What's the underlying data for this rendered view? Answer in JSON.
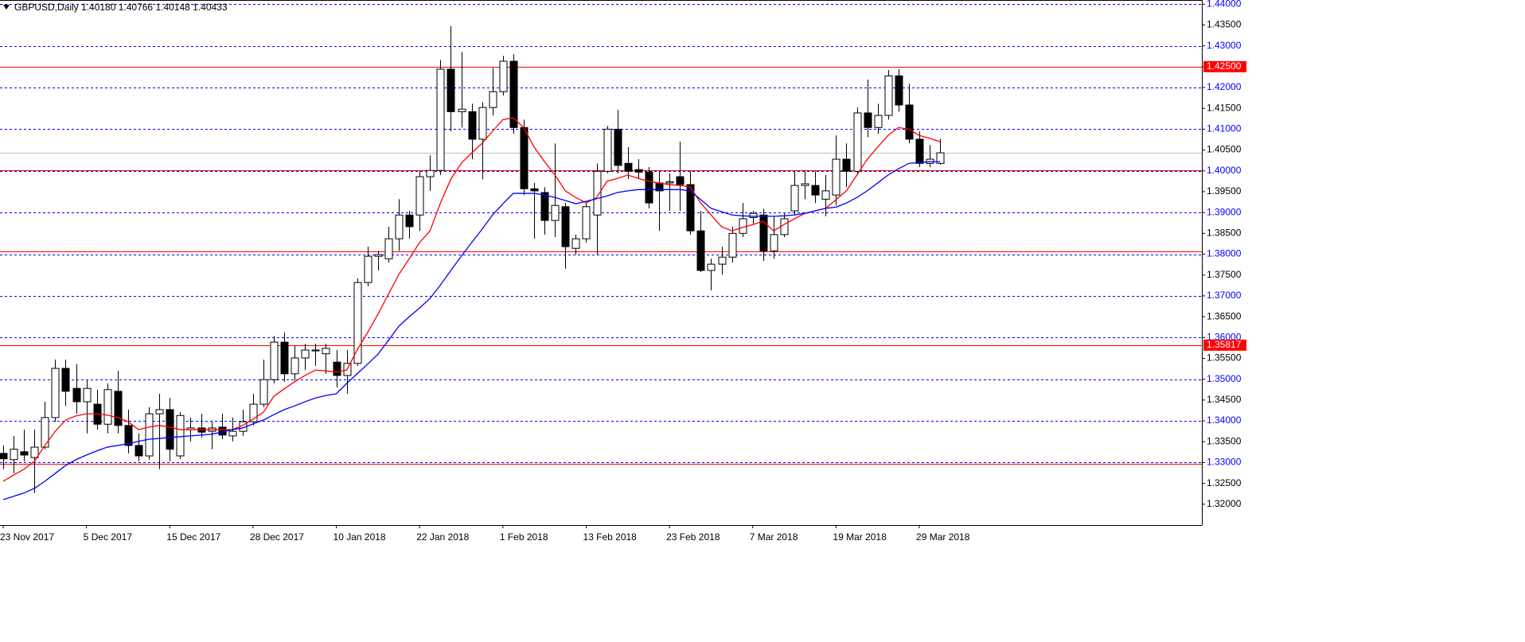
{
  "chart_data": {
    "type": "candlestick",
    "header": "GBPUSD,Daily  1.40180 1.40766 1.40148 1.40433",
    "categories": [
      "23 Nov 2017",
      null,
      null,
      null,
      null,
      null,
      null,
      null,
      "5 Dec 2017",
      null,
      null,
      null,
      null,
      null,
      null,
      null,
      "15 Dec 2017",
      null,
      null,
      null,
      null,
      null,
      null,
      null,
      "28 Dec 2017",
      null,
      null,
      null,
      null,
      null,
      null,
      null,
      "10 Jan 2018",
      null,
      null,
      null,
      null,
      null,
      null,
      null,
      "22 Jan 2018",
      null,
      null,
      null,
      null,
      null,
      null,
      null,
      "1 Feb 2018",
      null,
      null,
      null,
      null,
      null,
      null,
      null,
      "13 Feb 2018",
      null,
      null,
      null,
      null,
      null,
      null,
      null,
      "23 Feb 2018",
      null,
      null,
      null,
      null,
      null,
      null,
      null,
      "7 Mar 2018",
      null,
      null,
      null,
      null,
      null,
      null,
      null,
      "19 Mar 2018",
      null,
      null,
      null,
      null,
      null,
      null,
      null,
      "29 Mar 2018",
      null,
      null
    ],
    "open": [
      1.3322,
      1.3307,
      1.3326,
      1.3312,
      1.3337,
      1.3408,
      1.3526,
      1.3478,
      1.3446,
      1.344,
      1.3392,
      1.3471,
      1.3389,
      1.3341,
      1.3316,
      1.3417,
      1.3427,
      1.3316,
      1.3379,
      1.3383,
      1.3375,
      1.3385,
      1.3364,
      1.3375,
      1.3398,
      1.344,
      1.3499,
      1.3589,
      1.3513,
      1.3551,
      1.3568,
      1.3561,
      1.3541,
      1.3509,
      1.3538,
      1.3732,
      1.3795,
      1.3789,
      1.3837,
      1.3894,
      1.3894,
      1.3986,
      1.4001,
      1.4244,
      1.4142,
      1.4142,
      1.4076,
      1.4152,
      1.419,
      1.4263,
      1.4104,
      1.3957,
      1.3948,
      1.3881,
      1.3914,
      1.3814,
      1.3837,
      1.3894,
      1.3999,
      1.41,
      1.4018,
      1.4003,
      1.3997,
      1.3971,
      1.3971,
      1.3986,
      1.3967,
      1.3856,
      1.3761,
      1.3776,
      1.3793,
      1.385,
      1.3888,
      1.3894,
      1.3808,
      1.3847,
      1.3904,
      1.3965,
      1.3965,
      1.3932,
      1.3942,
      1.4028,
      1.3999,
      1.4139,
      1.4104,
      1.4133,
      1.4228,
      1.4158,
      1.4076,
      1.4018,
      1.4018
    ],
    "high": [
      1.3341,
      1.3364,
      1.3379,
      1.3379,
      1.3446,
      1.3547,
      1.3547,
      1.3536,
      1.3497,
      1.3475,
      1.349,
      1.352,
      1.3427,
      1.337,
      1.3433,
      1.3465,
      1.3455,
      1.3421,
      1.3408,
      1.3417,
      1.3398,
      1.3417,
      1.3408,
      1.3427,
      1.3465,
      1.3547,
      1.3604,
      1.3612,
      1.358,
      1.3585,
      1.3585,
      1.3585,
      1.357,
      1.357,
      1.3742,
      1.3818,
      1.3808,
      1.3866,
      1.3932,
      1.3904,
      1.3999,
      1.4037,
      1.4266,
      1.4347,
      1.4285,
      1.4161,
      1.4165,
      1.4247,
      1.4276,
      1.428,
      1.4123,
      1.3971,
      1.3961,
      1.4066,
      1.3923,
      1.3847,
      1.3923,
      1.4018,
      1.4108,
      1.4146,
      1.4057,
      1.4028,
      1.4009,
      1.3999,
      1.3994,
      1.407,
      1.3999,
      1.3904,
      1.3789,
      1.3818,
      1.3866,
      1.3923,
      1.3904,
      1.3909,
      1.389,
      1.3898,
      1.3999,
      1.3999,
      1.3999,
      1.399,
      1.4085,
      1.4066,
      1.4152,
      1.4219,
      1.4161,
      1.4242,
      1.4244,
      1.4209,
      1.4095,
      1.4062,
      1.40766
    ],
    "low": [
      1.3284,
      1.3274,
      1.3303,
      1.3227,
      1.3332,
      1.3398,
      1.3436,
      1.3417,
      1.337,
      1.3379,
      1.337,
      1.337,
      1.3322,
      1.3303,
      1.3307,
      1.3284,
      1.3303,
      1.3309,
      1.3351,
      1.336,
      1.3332,
      1.3356,
      1.3351,
      1.3364,
      1.3389,
      1.3433,
      1.349,
      1.3494,
      1.3497,
      1.3522,
      1.3532,
      1.3513,
      1.348,
      1.3465,
      1.3532,
      1.3723,
      1.3761,
      1.378,
      1.3808,
      1.3837,
      1.3856,
      1.3952,
      1.399,
      1.4095,
      1.4104,
      1.4028,
      1.398,
      1.4133,
      1.4181,
      1.4089,
      1.3942,
      1.3837,
      1.3847,
      1.3841,
      1.3765,
      1.3799,
      1.3828,
      1.3799,
      1.3994,
      1.3994,
      1.398,
      1.398,
      1.391,
      1.3856,
      1.3904,
      1.3904,
      1.3847,
      1.3757,
      1.3713,
      1.3751,
      1.378,
      1.3841,
      1.3871,
      1.3784,
      1.3789,
      1.3841,
      1.3894,
      1.3932,
      1.3923,
      1.3891,
      1.3917,
      1.3961,
      1.399,
      1.4081,
      1.4089,
      1.4123,
      1.4142,
      1.4066,
      1.4009,
      1.4009,
      1.40148
    ],
    "close": [
      1.3309,
      1.3332,
      1.3318,
      1.3337,
      1.3408,
      1.3526,
      1.3471,
      1.3446,
      1.3478,
      1.3392,
      1.3475,
      1.3389,
      1.3341,
      1.3316,
      1.3417,
      1.3427,
      1.3332,
      1.3413,
      1.3383,
      1.3373,
      1.3383,
      1.3366,
      1.3375,
      1.3398,
      1.344,
      1.3499,
      1.3589,
      1.3513,
      1.3551,
      1.357,
      1.357,
      1.3574,
      1.3509,
      1.3538,
      1.3732,
      1.3795,
      1.3799,
      1.3837,
      1.3894,
      1.3866,
      1.3986,
      1.4001,
      1.4244,
      1.4142,
      1.4148,
      1.4076,
      1.4152,
      1.419,
      1.4263,
      1.4104,
      1.3957,
      1.3952,
      1.3881,
      1.3917,
      1.3818,
      1.3837,
      1.3914,
      1.3999,
      1.41,
      1.4013,
      1.3999,
      1.3997,
      1.3923,
      1.3952,
      1.3974,
      1.3967,
      1.3856,
      1.3761,
      1.3776,
      1.3793,
      1.385,
      1.3885,
      1.3898,
      1.3808,
      1.3847,
      1.3885,
      1.3965,
      1.3969,
      1.3942,
      1.3952,
      1.4028,
      1.3999,
      1.4139,
      1.4104,
      1.4133,
      1.4228,
      1.4158,
      1.4076,
      1.4018,
      1.4028,
      1.40433
    ],
    "up_color": "#ffffff",
    "down_color": "#000000",
    "series": [
      {
        "color": "#ff0000",
        "values": [
          1.3255,
          1.327,
          1.3284,
          1.3303,
          1.3341,
          1.3375,
          1.3402,
          1.3412,
          1.3417,
          1.3417,
          1.3414,
          1.3408,
          1.3398,
          1.3379,
          1.3385,
          1.3389,
          1.3385,
          1.3379,
          1.3379,
          1.3379,
          1.3379,
          1.3379,
          1.3379,
          1.3389,
          1.3404,
          1.3421,
          1.3459,
          1.3477,
          1.3494,
          1.3509,
          1.3522,
          1.352,
          1.3517,
          1.3522,
          1.357,
          1.3612,
          1.3656,
          1.3704,
          1.3751,
          1.3789,
          1.3828,
          1.3856,
          1.3923,
          1.398,
          1.4018,
          1.4043,
          1.4066,
          1.4095,
          1.4123,
          1.4127,
          1.4104,
          1.4057,
          1.4022,
          1.399,
          1.3952,
          1.3936,
          1.3923,
          1.3936,
          1.3975,
          1.3982,
          1.399,
          1.3982,
          1.3975,
          1.3971,
          1.3967,
          1.3965,
          1.3961,
          1.3923,
          1.3894,
          1.3866,
          1.3856,
          1.3864,
          1.3871,
          1.3879,
          1.3856,
          1.3871,
          1.3885,
          1.3898,
          1.3904,
          1.391,
          1.3931,
          1.3952,
          1.399,
          1.4028,
          1.4057,
          1.4085,
          1.4104,
          1.41,
          1.4085,
          1.4078,
          1.407
        ]
      },
      {
        "color": "#0000ff",
        "values": [
          1.3211,
          1.3219,
          1.3227,
          1.3238,
          1.3255,
          1.3274,
          1.3293,
          1.3307,
          1.3318,
          1.3328,
          1.3337,
          1.3341,
          1.3345,
          1.3351,
          1.3356,
          1.3358,
          1.336,
          1.3362,
          1.3364,
          1.3366,
          1.3368,
          1.3373,
          1.3379,
          1.3383,
          1.3393,
          1.3402,
          1.3415,
          1.3427,
          1.3436,
          1.3446,
          1.3455,
          1.3461,
          1.3465,
          1.349,
          1.3513,
          1.3536,
          1.356,
          1.3593,
          1.3627,
          1.365,
          1.3671,
          1.3694,
          1.3726,
          1.3761,
          1.3795,
          1.3828,
          1.386,
          1.3894,
          1.3921,
          1.3946,
          1.3946,
          1.3946,
          1.3942,
          1.3936,
          1.3929,
          1.3921,
          1.3927,
          1.3933,
          1.394,
          1.3948,
          1.3952,
          1.3955,
          1.3955,
          1.3955,
          1.3955,
          1.3955,
          1.3952,
          1.3931,
          1.391,
          1.3902,
          1.3894,
          1.3892,
          1.3891,
          1.3891,
          1.3891,
          1.3892,
          1.3894,
          1.3898,
          1.3904,
          1.391,
          1.3913,
          1.3923,
          1.3936,
          1.3952,
          1.3971,
          1.399,
          1.4005,
          1.4018,
          1.402,
          1.4022,
          1.4022
        ]
      }
    ],
    "hlines": [
      {
        "value": 1.44,
        "color": "#0000ff",
        "style": "dashed"
      },
      {
        "value": 1.43,
        "color": "#0000ff",
        "style": "dashed"
      },
      {
        "value": 1.42,
        "color": "#0000ff",
        "style": "dashed"
      },
      {
        "value": 1.41,
        "color": "#0000ff",
        "style": "dashed"
      },
      {
        "value": 1.4,
        "color": "#0000ff",
        "style": "dashed"
      },
      {
        "value": 1.39,
        "color": "#0000ff",
        "style": "dashed"
      },
      {
        "value": 1.38,
        "color": "#0000ff",
        "style": "dashed"
      },
      {
        "value": 1.37,
        "color": "#0000ff",
        "style": "dashed"
      },
      {
        "value": 1.36,
        "color": "#0000ff",
        "style": "dashed"
      },
      {
        "value": 1.35,
        "color": "#0000ff",
        "style": "dashed"
      },
      {
        "value": 1.34,
        "color": "#0000ff",
        "style": "dashed"
      },
      {
        "value": 1.33,
        "color": "#0000ff",
        "style": "dashed"
      },
      {
        "value": 1.425,
        "color": "#ff0000",
        "style": "solid"
      },
      {
        "value": 1.4001,
        "color": "#ff0000",
        "style": "solid"
      },
      {
        "value": 1.3806,
        "color": "#ff0000",
        "style": "solid"
      },
      {
        "value": 1.35817,
        "label": "1.35817",
        "color": "#ff0000",
        "style": "solid"
      },
      {
        "value": 1.3297,
        "color": "#ff0000",
        "style": "solid"
      },
      {
        "value": 1.40433,
        "color": "#c0c0c0",
        "style": "solid"
      }
    ],
    "ylim": [
      1.315,
      1.441
    ],
    "yticks": [
      {
        "value": 1.32,
        "label": "1.32000"
      },
      {
        "value": 1.325,
        "label": "1.32500"
      },
      {
        "value": 1.33,
        "label": "1.33000"
      },
      {
        "value": 1.335,
        "label": "1.33500"
      },
      {
        "value": 1.34,
        "label": "1.34000"
      },
      {
        "value": 1.345,
        "label": "1.34500"
      },
      {
        "value": 1.35,
        "label": "1.35000"
      },
      {
        "value": 1.355,
        "label": "1.35500"
      },
      {
        "value": 1.36,
        "label": "1.36000"
      },
      {
        "value": 1.365,
        "label": "1.36500"
      },
      {
        "value": 1.37,
        "label": "1.37000"
      },
      {
        "value": 1.375,
        "label": "1.37500"
      },
      {
        "value": 1.38,
        "label": "1.38000"
      },
      {
        "value": 1.385,
        "label": "1.38500"
      },
      {
        "value": 1.39,
        "label": "1.39000"
      },
      {
        "value": 1.395,
        "label": "1.39500"
      },
      {
        "value": 1.4,
        "label": "1.40000"
      },
      {
        "value": 1.405,
        "label": "1.40500"
      },
      {
        "value": 1.41,
        "label": "1.41000"
      },
      {
        "value": 1.415,
        "label": "1.41500"
      },
      {
        "value": 1.42,
        "label": "1.42000"
      },
      {
        "value": 1.425,
        "label": "1.42500"
      },
      {
        "value": 1.43,
        "label": "1.43000"
      },
      {
        "value": 1.435,
        "label": "1.43500"
      },
      {
        "value": 1.44,
        "label": "1.44000"
      }
    ]
  }
}
